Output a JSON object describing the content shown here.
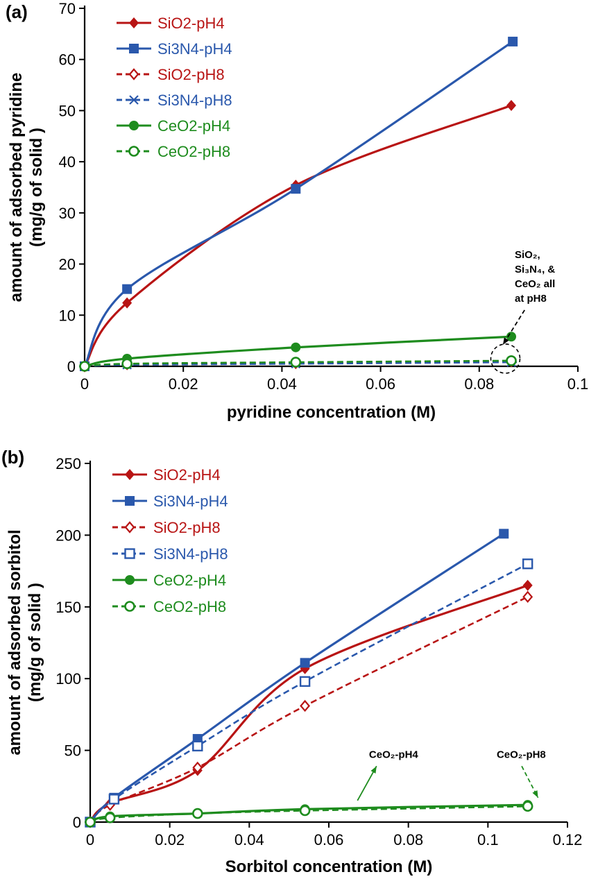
{
  "figure": {
    "background": "#ffffff"
  },
  "chart_data": [
    {
      "panel_label": "(a)",
      "type": "line",
      "xlabel": "pyridine concentration (M)",
      "ylabel_line1": "amount of adsorbed pyridine",
      "ylabel_line2": "(mg/g of solid )",
      "xlim": [
        0,
        0.1
      ],
      "ylim": [
        0,
        70
      ],
      "grid": false,
      "legend_position": "top-left-inside",
      "xticks": [
        0,
        0.02,
        0.04,
        0.06,
        0.08,
        0.1
      ],
      "xtick_labels": [
        "0",
        "0.02",
        "0.04",
        "0.06",
        "0.08",
        "0.1"
      ],
      "yticks": [
        0,
        10,
        20,
        30,
        40,
        50,
        60,
        70
      ],
      "ytick_labels": [
        "0",
        "10",
        "20",
        "30",
        "40",
        "50",
        "60",
        "70"
      ],
      "series": [
        {
          "name": "SiO2-pH4",
          "color": "#b81414",
          "dash": "solid",
          "marker": "diamond-filled",
          "x": [
            0,
            0.0086,
            0.0428,
            0.0865
          ],
          "y": [
            0,
            12.4,
            35.4,
            51.0
          ]
        },
        {
          "name": "Si3N4-pH4",
          "color": "#2a58ac",
          "dash": "solid",
          "marker": "square-filled",
          "x": [
            0,
            0.0086,
            0.0428,
            0.0868
          ],
          "y": [
            0,
            15.1,
            34.7,
            63.5
          ]
        },
        {
          "name": "SiO2-pH8",
          "color": "#b81414",
          "dash": "dashed",
          "marker": "diamond-open",
          "x": [
            0,
            0.0086,
            0.0428,
            0.0865
          ],
          "y": [
            0,
            0.4,
            0.6,
            1.0
          ]
        },
        {
          "name": "Si3N4-pH8",
          "color": "#2a58ac",
          "dash": "dashed",
          "marker": "x",
          "x": [
            0,
            0.0086,
            0.0428,
            0.0865
          ],
          "y": [
            0,
            0.3,
            0.5,
            0.8
          ]
        },
        {
          "name": "CeO2-pH4",
          "color": "#1e8c1e",
          "dash": "solid",
          "marker": "circle-filled",
          "x": [
            0,
            0.0086,
            0.0428,
            0.0865
          ],
          "y": [
            0,
            1.5,
            3.7,
            5.8
          ]
        },
        {
          "name": "CeO2-pH8",
          "color": "#1e8c1e",
          "dash": "dashed",
          "marker": "circle-open",
          "x": [
            0,
            0.0086,
            0.0428,
            0.0865
          ],
          "y": [
            0,
            0.5,
            0.8,
            1.1
          ]
        }
      ],
      "annotations": [
        {
          "lines": [
            "SiO₂,",
            "Si₃N₄, &",
            "CeO₂  all",
            "at pH8"
          ],
          "x": 0.0872,
          "y": 23.2,
          "font_size": 15,
          "line_height": 21,
          "color": "#000000",
          "arrow": {
            "x1": 0.0892,
            "y1": 11.0,
            "x2": 0.0848,
            "y2": 4.2,
            "color": "#000000",
            "dash": true
          },
          "circle": {
            "x": 0.0853,
            "y": 1.5,
            "r": 21
          }
        }
      ]
    },
    {
      "panel_label": "(b)",
      "type": "line",
      "xlabel": "Sorbitol concentration (M)",
      "ylabel_line1": "amount of adsorbed sorbitol",
      "ylabel_line2": "(mg/g of solid )",
      "xlim": [
        0,
        0.12
      ],
      "ylim": [
        0,
        250
      ],
      "grid": false,
      "legend_position": "top-left-inside",
      "xticks": [
        0,
        0.02,
        0.04,
        0.06,
        0.08,
        0.1,
        0.12
      ],
      "xtick_labels": [
        "0",
        "0.02",
        "0.04",
        "0.06",
        "0.08",
        "0.1",
        "0.12"
      ],
      "yticks": [
        0,
        50,
        100,
        150,
        200,
        250
      ],
      "ytick_labels": [
        "0",
        "50",
        "100",
        "150",
        "200",
        "250"
      ],
      "series": [
        {
          "name": "SiO2-pH4",
          "color": "#b81414",
          "dash": "solid",
          "marker": "diamond-filled",
          "x": [
            0,
            0.005,
            0.027,
            0.054,
            0.11
          ],
          "y": [
            0,
            13,
            36,
            107,
            165
          ]
        },
        {
          "name": "Si3N4-pH4",
          "color": "#2a58ac",
          "dash": "solid",
          "marker": "square-filled",
          "x": [
            0,
            0.006,
            0.027,
            0.054,
            0.104
          ],
          "y": [
            0,
            17,
            58,
            111,
            201
          ]
        },
        {
          "name": "SiO2-pH8",
          "color": "#b81414",
          "dash": "dashed",
          "marker": "diamond-open",
          "x": [
            0,
            0.005,
            0.027,
            0.054,
            0.11
          ],
          "y": [
            0,
            12,
            38,
            81,
            157
          ]
        },
        {
          "name": "Si3N4-pH8",
          "color": "#2a58ac",
          "dash": "dashed",
          "marker": "square-open",
          "x": [
            0,
            0.006,
            0.027,
            0.054,
            0.11
          ],
          "y": [
            0,
            16,
            53,
            98,
            180
          ]
        },
        {
          "name": "CeO2-pH4",
          "color": "#1e8c1e",
          "dash": "solid",
          "marker": "circle-filled",
          "x": [
            0,
            0.005,
            0.027,
            0.054,
            0.11
          ],
          "y": [
            0,
            4,
            6,
            9,
            12
          ]
        },
        {
          "name": "CeO2-pH8",
          "color": "#1e8c1e",
          "dash": "dashed",
          "marker": "circle-open",
          "x": [
            0,
            0.005,
            0.027,
            0.054,
            0.11
          ],
          "y": [
            0,
            3,
            6,
            8,
            11
          ]
        }
      ],
      "annotations": [
        {
          "lines": [
            "CeO₂-pH4"
          ],
          "x": 0.0701,
          "y": 52,
          "font_size": 15,
          "line_height": 19,
          "color": "#000000",
          "arrow": {
            "x1": 0.0672,
            "y1": 15,
            "x2": 0.072,
            "y2": 39,
            "color": "#1e8c1e",
            "dash": false
          }
        },
        {
          "lines": [
            "CeO₂-pH8"
          ],
          "x": 0.1022,
          "y": 52,
          "font_size": 15,
          "line_height": 19,
          "color": "#000000",
          "arrow": {
            "x1": 0.1085,
            "y1": 39,
            "x2": 0.1126,
            "y2": 17,
            "color": "#1e8c1e",
            "dash": true
          }
        }
      ]
    }
  ]
}
